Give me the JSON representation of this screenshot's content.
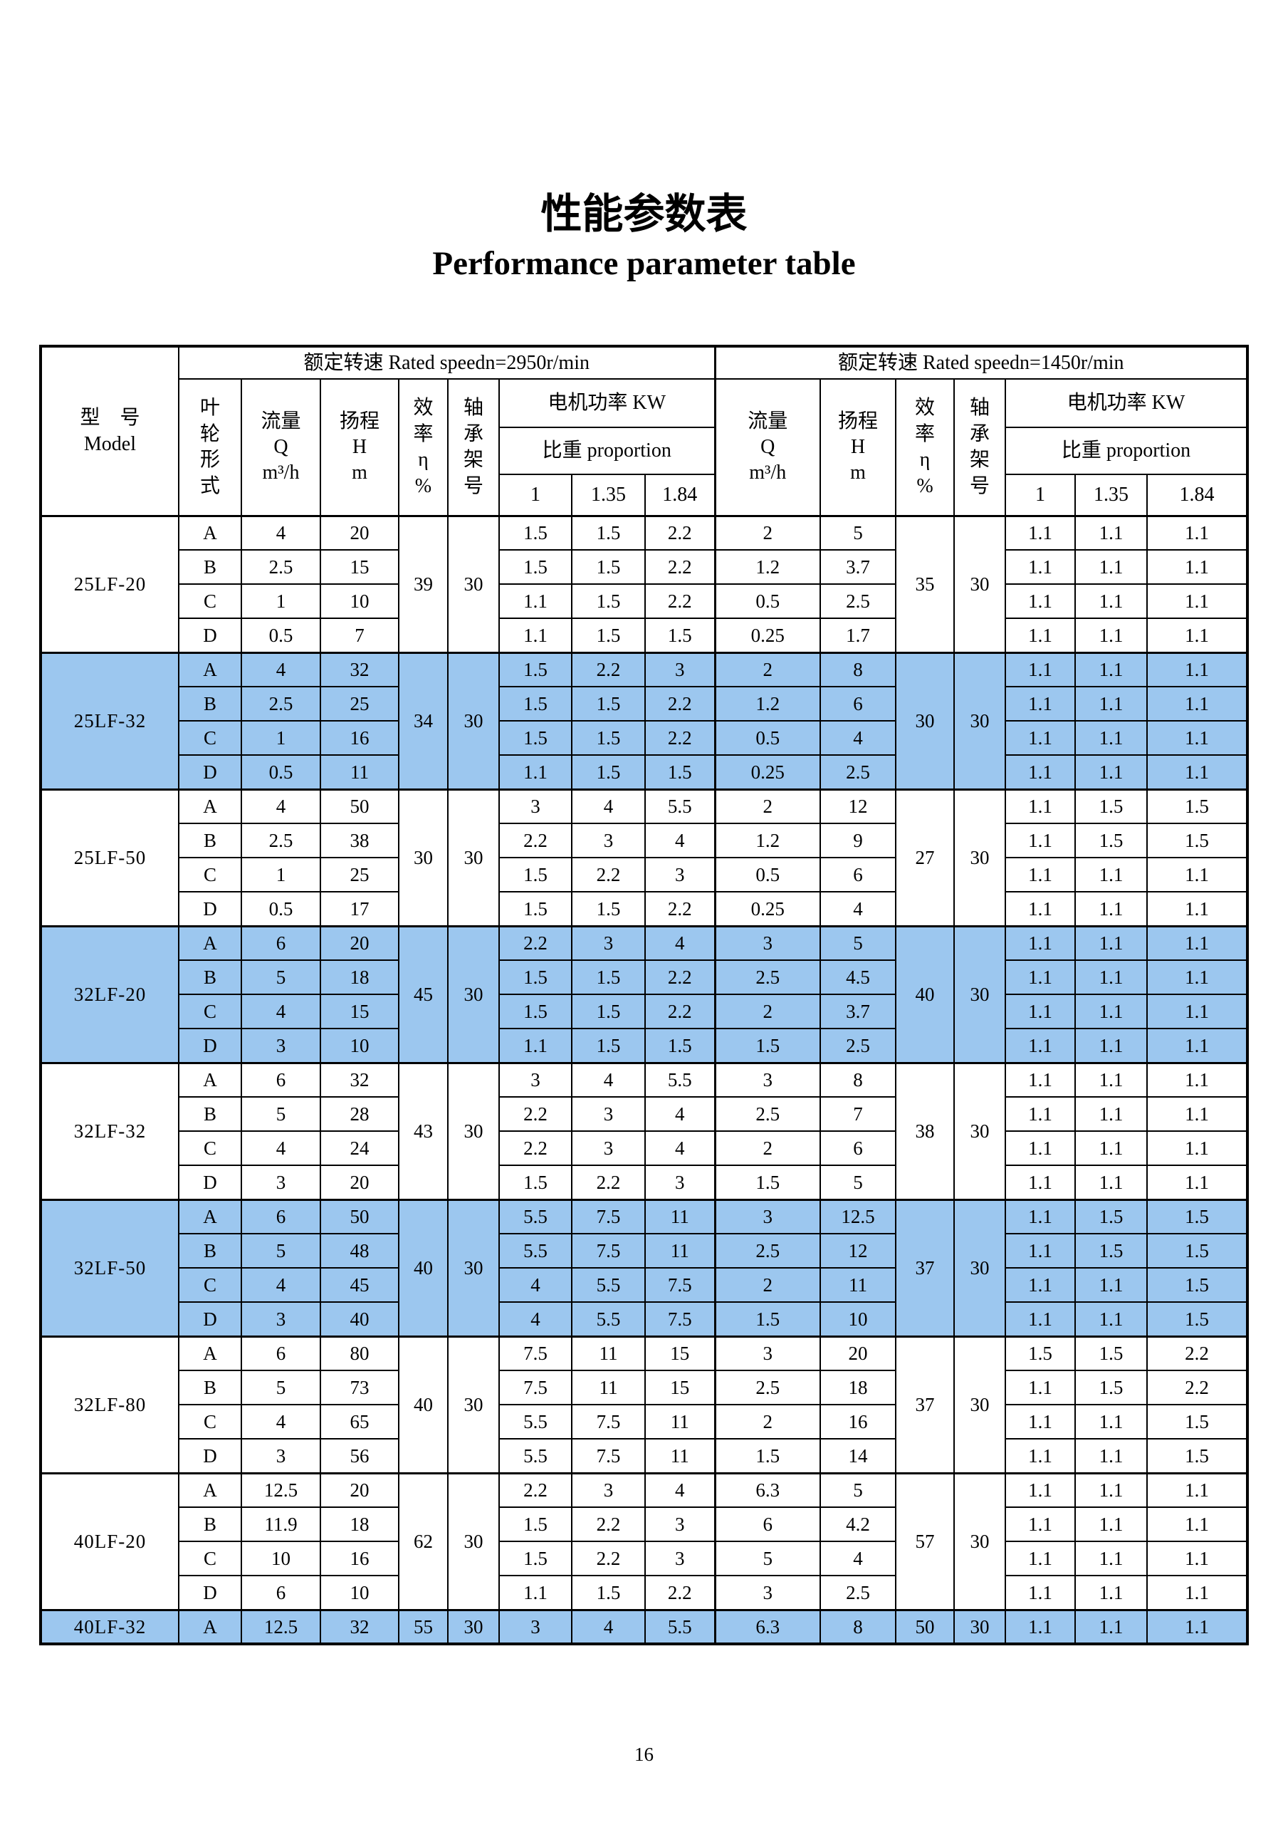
{
  "page": {
    "title_zh": "性能参数表",
    "title_en": "Performance parameter table",
    "page_number": "16"
  },
  "table": {
    "header": {
      "model": "型　号\nModel",
      "group_2950": "额定转速 Rated speedn=2950r/min",
      "group_1450": "额定转速 Rated speedn=1450r/min",
      "impeller": "叶\n轮\n形\n式",
      "flow": "流量\nQ\nm³/h",
      "head": "扬程\nH\nm",
      "efficiency": "效\n率\nη\n%",
      "bearing": "轴\n承\n架\n号",
      "power": "电机功率 KW",
      "proportion": "比重 proportion",
      "ratios": [
        "1",
        "1.35",
        "1.84"
      ]
    },
    "models": [
      {
        "model": "25LF-20",
        "highlight": false,
        "s2950": {
          "eff": "39",
          "bearing": "30"
        },
        "s1450": {
          "eff": "35",
          "bearing": "30"
        },
        "variants": [
          {
            "imp": "A",
            "q": "4",
            "h": "20",
            "kw": [
              "1.5",
              "1.5",
              "2.2"
            ],
            "q2": "2",
            "h2": "5",
            "kw2": [
              "1.1",
              "1.1",
              "1.1"
            ]
          },
          {
            "imp": "B",
            "q": "2.5",
            "h": "15",
            "kw": [
              "1.5",
              "1.5",
              "2.2"
            ],
            "q2": "1.2",
            "h2": "3.7",
            "kw2": [
              "1.1",
              "1.1",
              "1.1"
            ]
          },
          {
            "imp": "C",
            "q": "1",
            "h": "10",
            "kw": [
              "1.1",
              "1.5",
              "2.2"
            ],
            "q2": "0.5",
            "h2": "2.5",
            "kw2": [
              "1.1",
              "1.1",
              "1.1"
            ]
          },
          {
            "imp": "D",
            "q": "0.5",
            "h": "7",
            "kw": [
              "1.1",
              "1.5",
              "1.5"
            ],
            "q2": "0.25",
            "h2": "1.7",
            "kw2": [
              "1.1",
              "1.1",
              "1.1"
            ]
          }
        ]
      },
      {
        "model": "25LF-32",
        "highlight": true,
        "s2950": {
          "eff": "34",
          "bearing": "30"
        },
        "s1450": {
          "eff": "30",
          "bearing": "30"
        },
        "variants": [
          {
            "imp": "A",
            "q": "4",
            "h": "32",
            "kw": [
              "1.5",
              "2.2",
              "3"
            ],
            "q2": "2",
            "h2": "8",
            "kw2": [
              "1.1",
              "1.1",
              "1.1"
            ]
          },
          {
            "imp": "B",
            "q": "2.5",
            "h": "25",
            "kw": [
              "1.5",
              "1.5",
              "2.2"
            ],
            "q2": "1.2",
            "h2": "6",
            "kw2": [
              "1.1",
              "1.1",
              "1.1"
            ]
          },
          {
            "imp": "C",
            "q": "1",
            "h": "16",
            "kw": [
              "1.5",
              "1.5",
              "2.2"
            ],
            "q2": "0.5",
            "h2": "4",
            "kw2": [
              "1.1",
              "1.1",
              "1.1"
            ]
          },
          {
            "imp": "D",
            "q": "0.5",
            "h": "11",
            "kw": [
              "1.1",
              "1.5",
              "1.5"
            ],
            "q2": "0.25",
            "h2": "2.5",
            "kw2": [
              "1.1",
              "1.1",
              "1.1"
            ]
          }
        ]
      },
      {
        "model": "25LF-50",
        "highlight": false,
        "s2950": {
          "eff": "30",
          "bearing": "30"
        },
        "s1450": {
          "eff": "27",
          "bearing": "30"
        },
        "variants": [
          {
            "imp": "A",
            "q": "4",
            "h": "50",
            "kw": [
              "3",
              "4",
              "5.5"
            ],
            "q2": "2",
            "h2": "12",
            "kw2": [
              "1.1",
              "1.5",
              "1.5"
            ]
          },
          {
            "imp": "B",
            "q": "2.5",
            "h": "38",
            "kw": [
              "2.2",
              "3",
              "4"
            ],
            "q2": "1.2",
            "h2": "9",
            "kw2": [
              "1.1",
              "1.5",
              "1.5"
            ]
          },
          {
            "imp": "C",
            "q": "1",
            "h": "25",
            "kw": [
              "1.5",
              "2.2",
              "3"
            ],
            "q2": "0.5",
            "h2": "6",
            "kw2": [
              "1.1",
              "1.1",
              "1.1"
            ]
          },
          {
            "imp": "D",
            "q": "0.5",
            "h": "17",
            "kw": [
              "1.5",
              "1.5",
              "2.2"
            ],
            "q2": "0.25",
            "h2": "4",
            "kw2": [
              "1.1",
              "1.1",
              "1.1"
            ]
          }
        ]
      },
      {
        "model": "32LF-20",
        "highlight": true,
        "s2950": {
          "eff": "45",
          "bearing": "30"
        },
        "s1450": {
          "eff": "40",
          "bearing": "30"
        },
        "variants": [
          {
            "imp": "A",
            "q": "6",
            "h": "20",
            "kw": [
              "2.2",
              "3",
              "4"
            ],
            "q2": "3",
            "h2": "5",
            "kw2": [
              "1.1",
              "1.1",
              "1.1"
            ]
          },
          {
            "imp": "B",
            "q": "5",
            "h": "18",
            "kw": [
              "1.5",
              "1.5",
              "2.2"
            ],
            "q2": "2.5",
            "h2": "4.5",
            "kw2": [
              "1.1",
              "1.1",
              "1.1"
            ]
          },
          {
            "imp": "C",
            "q": "4",
            "h": "15",
            "kw": [
              "1.5",
              "1.5",
              "2.2"
            ],
            "q2": "2",
            "h2": "3.7",
            "kw2": [
              "1.1",
              "1.1",
              "1.1"
            ]
          },
          {
            "imp": "D",
            "q": "3",
            "h": "10",
            "kw": [
              "1.1",
              "1.5",
              "1.5"
            ],
            "q2": "1.5",
            "h2": "2.5",
            "kw2": [
              "1.1",
              "1.1",
              "1.1"
            ]
          }
        ]
      },
      {
        "model": "32LF-32",
        "highlight": false,
        "s2950": {
          "eff": "43",
          "bearing": "30"
        },
        "s1450": {
          "eff": "38",
          "bearing": "30"
        },
        "variants": [
          {
            "imp": "A",
            "q": "6",
            "h": "32",
            "kw": [
              "3",
              "4",
              "5.5"
            ],
            "q2": "3",
            "h2": "8",
            "kw2": [
              "1.1",
              "1.1",
              "1.1"
            ]
          },
          {
            "imp": "B",
            "q": "5",
            "h": "28",
            "kw": [
              "2.2",
              "3",
              "4"
            ],
            "q2": "2.5",
            "h2": "7",
            "kw2": [
              "1.1",
              "1.1",
              "1.1"
            ]
          },
          {
            "imp": "C",
            "q": "4",
            "h": "24",
            "kw": [
              "2.2",
              "3",
              "4"
            ],
            "q2": "2",
            "h2": "6",
            "kw2": [
              "1.1",
              "1.1",
              "1.1"
            ]
          },
          {
            "imp": "D",
            "q": "3",
            "h": "20",
            "kw": [
              "1.5",
              "2.2",
              "3"
            ],
            "q2": "1.5",
            "h2": "5",
            "kw2": [
              "1.1",
              "1.1",
              "1.1"
            ]
          }
        ]
      },
      {
        "model": "32LF-50",
        "highlight": true,
        "s2950": {
          "eff": "40",
          "bearing": "30"
        },
        "s1450": {
          "eff": "37",
          "bearing": "30"
        },
        "variants": [
          {
            "imp": "A",
            "q": "6",
            "h": "50",
            "kw": [
              "5.5",
              "7.5",
              "11"
            ],
            "q2": "3",
            "h2": "12.5",
            "kw2": [
              "1.1",
              "1.5",
              "1.5"
            ]
          },
          {
            "imp": "B",
            "q": "5",
            "h": "48",
            "kw": [
              "5.5",
              "7.5",
              "11"
            ],
            "q2": "2.5",
            "h2": "12",
            "kw2": [
              "1.1",
              "1.5",
              "1.5"
            ]
          },
          {
            "imp": "C",
            "q": "4",
            "h": "45",
            "kw": [
              "4",
              "5.5",
              "7.5"
            ],
            "q2": "2",
            "h2": "11",
            "kw2": [
              "1.1",
              "1.1",
              "1.5"
            ]
          },
          {
            "imp": "D",
            "q": "3",
            "h": "40",
            "kw": [
              "4",
              "5.5",
              "7.5"
            ],
            "q2": "1.5",
            "h2": "10",
            "kw2": [
              "1.1",
              "1.1",
              "1.5"
            ]
          }
        ]
      },
      {
        "model": "32LF-80",
        "highlight": false,
        "s2950": {
          "eff": "40",
          "bearing": "30"
        },
        "s1450": {
          "eff": "37",
          "bearing": "30"
        },
        "variants": [
          {
            "imp": "A",
            "q": "6",
            "h": "80",
            "kw": [
              "7.5",
              "11",
              "15"
            ],
            "q2": "3",
            "h2": "20",
            "kw2": [
              "1.5",
              "1.5",
              "2.2"
            ]
          },
          {
            "imp": "B",
            "q": "5",
            "h": "73",
            "kw": [
              "7.5",
              "11",
              "15"
            ],
            "q2": "2.5",
            "h2": "18",
            "kw2": [
              "1.1",
              "1.5",
              "2.2"
            ]
          },
          {
            "imp": "C",
            "q": "4",
            "h": "65",
            "kw": [
              "5.5",
              "7.5",
              "11"
            ],
            "q2": "2",
            "h2": "16",
            "kw2": [
              "1.1",
              "1.1",
              "1.5"
            ]
          },
          {
            "imp": "D",
            "q": "3",
            "h": "56",
            "kw": [
              "5.5",
              "7.5",
              "11"
            ],
            "q2": "1.5",
            "h2": "14",
            "kw2": [
              "1.1",
              "1.1",
              "1.5"
            ]
          }
        ]
      },
      {
        "model": "40LF-20",
        "highlight": false,
        "s2950": {
          "eff": "62",
          "bearing": "30"
        },
        "s1450": {
          "eff": "57",
          "bearing": "30"
        },
        "variants": [
          {
            "imp": "A",
            "q": "12.5",
            "h": "20",
            "kw": [
              "2.2",
              "3",
              "4"
            ],
            "q2": "6.3",
            "h2": "5",
            "kw2": [
              "1.1",
              "1.1",
              "1.1"
            ]
          },
          {
            "imp": "B",
            "q": "11.9",
            "h": "18",
            "kw": [
              "1.5",
              "2.2",
              "3"
            ],
            "q2": "6",
            "h2": "4.2",
            "kw2": [
              "1.1",
              "1.1",
              "1.1"
            ]
          },
          {
            "imp": "C",
            "q": "10",
            "h": "16",
            "kw": [
              "1.5",
              "2.2",
              "3"
            ],
            "q2": "5",
            "h2": "4",
            "kw2": [
              "1.1",
              "1.1",
              "1.1"
            ]
          },
          {
            "imp": "D",
            "q": "6",
            "h": "10",
            "kw": [
              "1.1",
              "1.5",
              "2.2"
            ],
            "q2": "3",
            "h2": "2.5",
            "kw2": [
              "1.1",
              "1.1",
              "1.1"
            ]
          }
        ]
      },
      {
        "model": "40LF-32",
        "highlight": true,
        "s2950": {
          "eff": "55",
          "bearing": "30"
        },
        "s1450": {
          "eff": "50",
          "bearing": "30"
        },
        "variants": [
          {
            "imp": "A",
            "q": "12.5",
            "h": "32",
            "kw": [
              "3",
              "4",
              "5.5"
            ],
            "q2": "6.3",
            "h2": "8",
            "kw2": [
              "1.1",
              "1.1",
              "1.1"
            ]
          }
        ]
      }
    ]
  }
}
